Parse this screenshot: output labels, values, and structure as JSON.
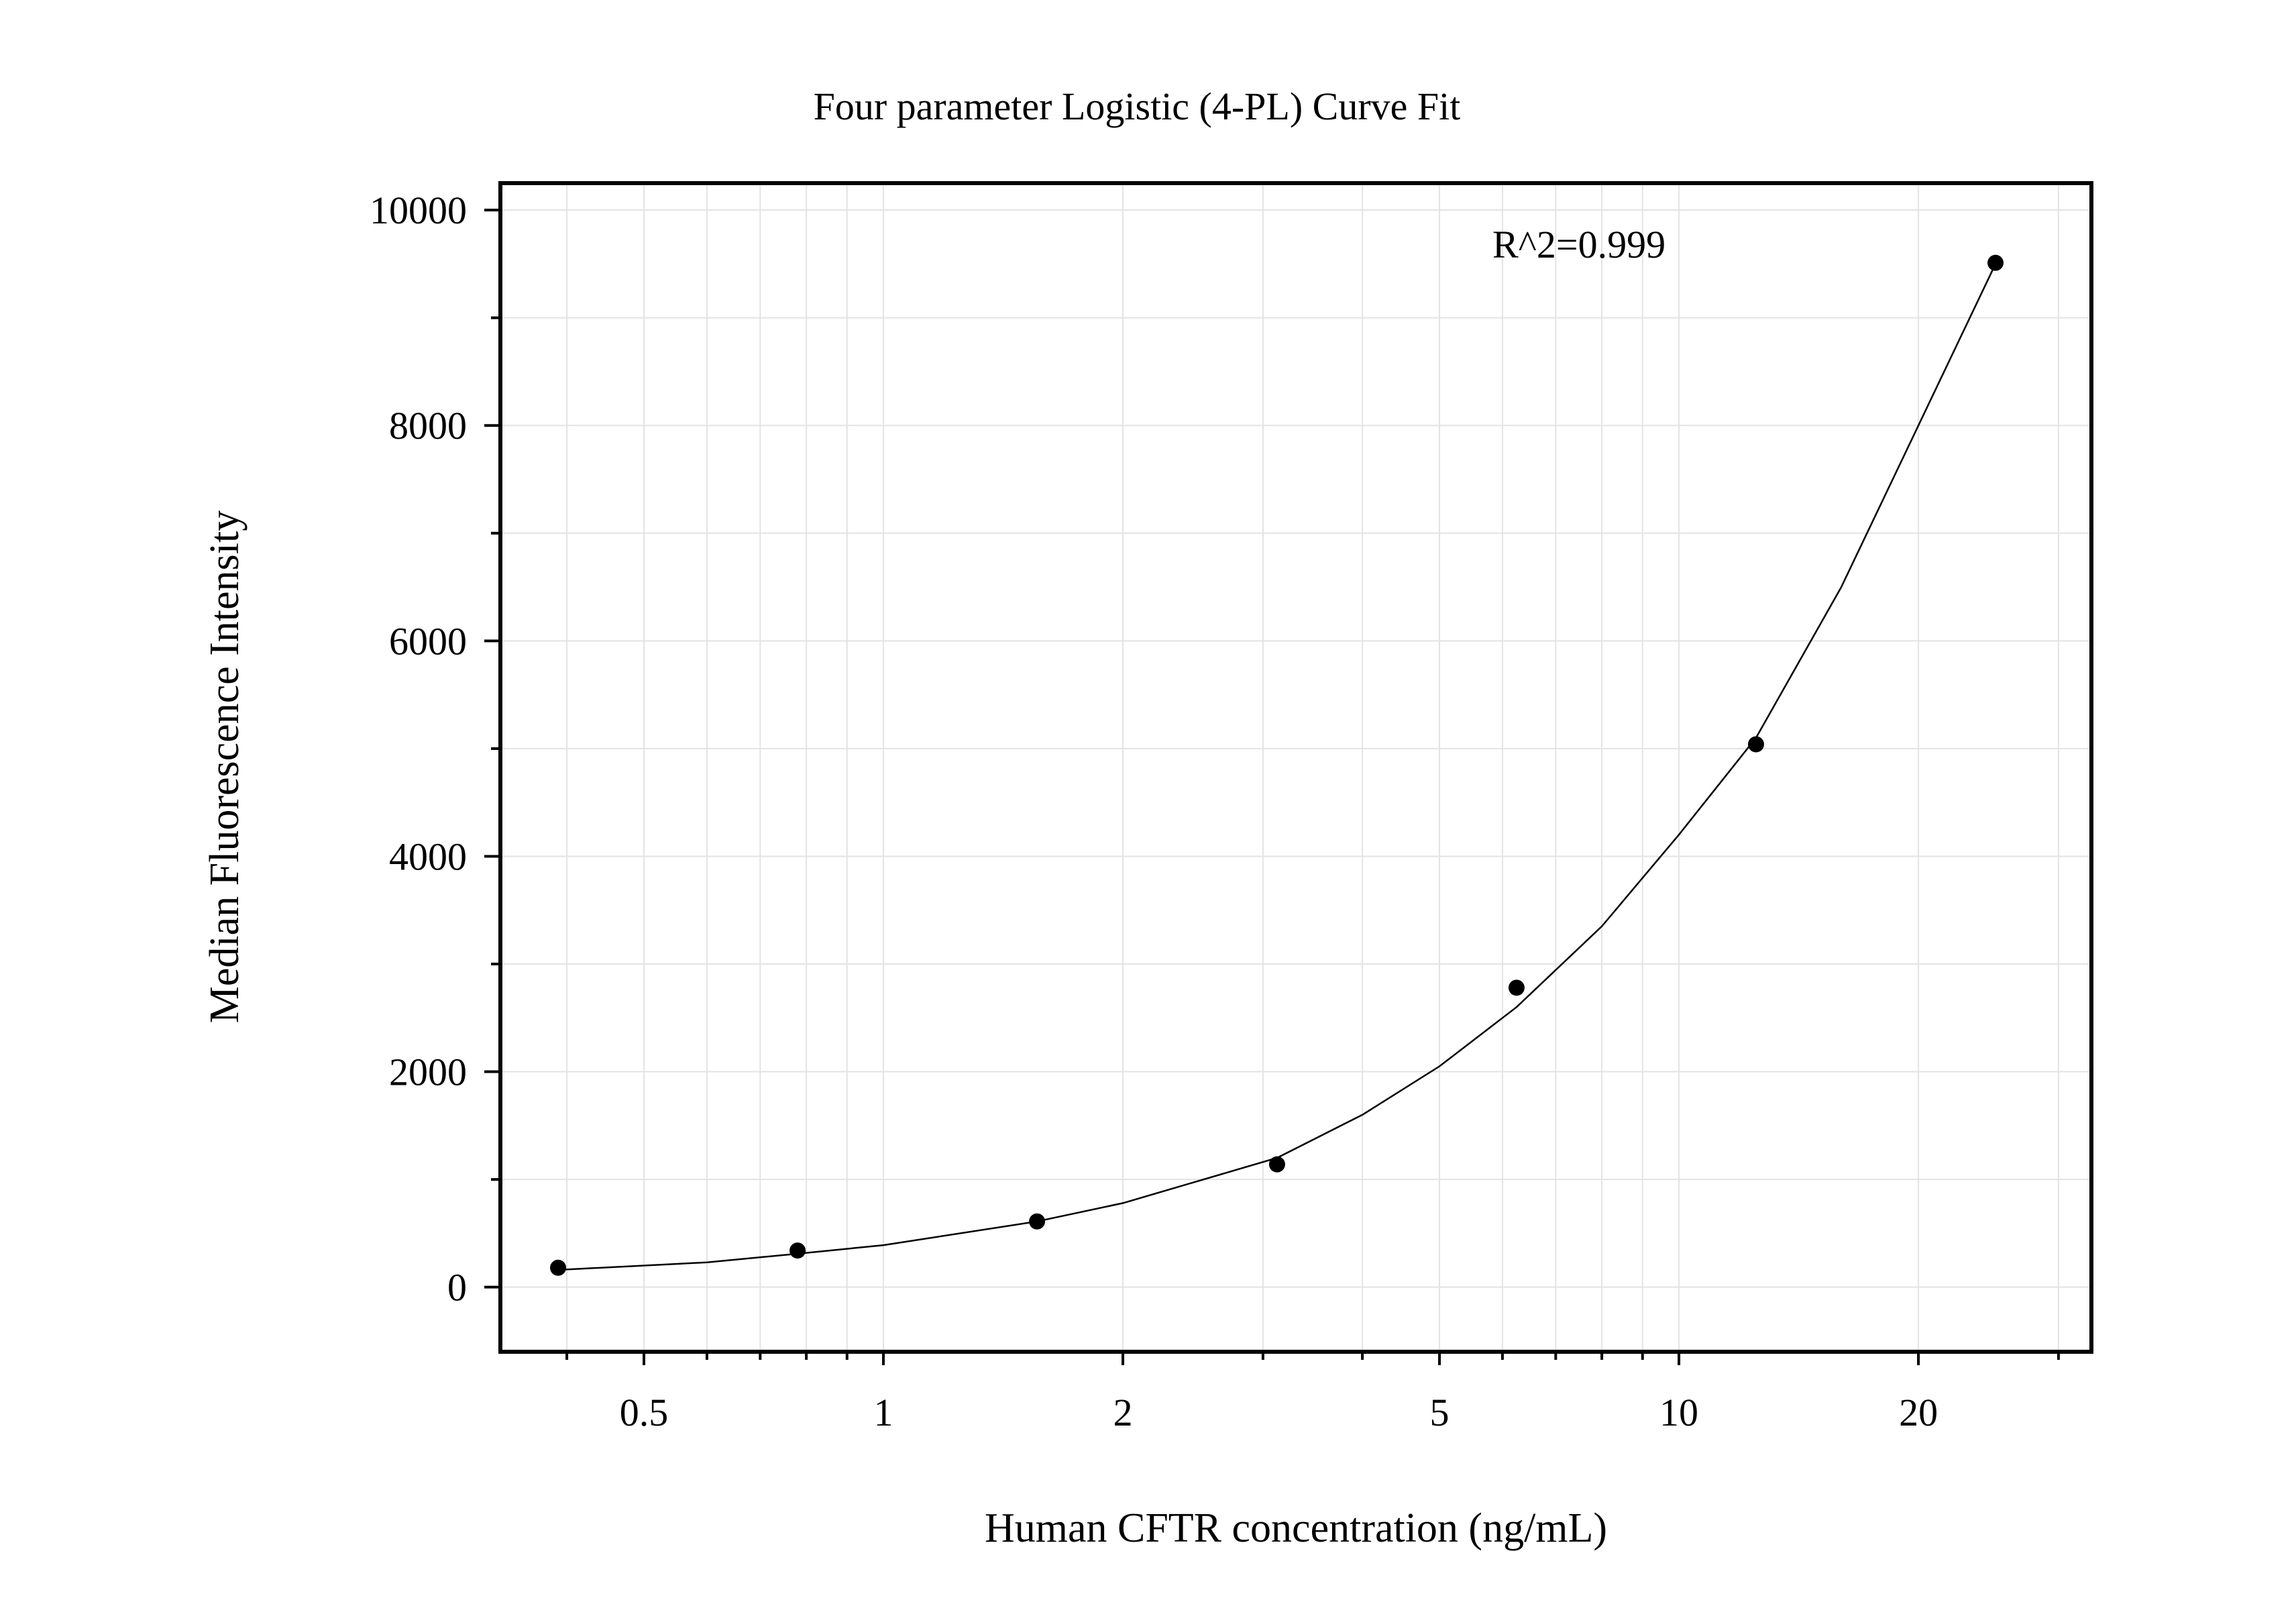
{
  "chart_data": {
    "type": "scatter",
    "title": "Four parameter Logistic (4-PL) Curve Fit",
    "xlabel": "Human CFTR concentration (ng/mL)",
    "ylabel": "Median Fluorescence Intensity",
    "x_scale": "log",
    "xlim": [
      0.33,
      33
    ],
    "ylim": [
      -600,
      10250
    ],
    "x_ticks": [
      0.5,
      1,
      2,
      5,
      10,
      20
    ],
    "x_tick_labels": [
      "0.5",
      "1",
      "2",
      "5",
      "10",
      "20"
    ],
    "y_ticks": [
      0,
      2000,
      4000,
      6000,
      8000,
      10000
    ],
    "y_tick_labels": [
      "0",
      "2000",
      "4000",
      "6000",
      "8000",
      "10000"
    ],
    "grid": true,
    "annotation": "R^2=0.999",
    "series": [
      {
        "points": [
          {
            "x": 0.39,
            "y": 180
          },
          {
            "x": 0.78,
            "y": 340
          },
          {
            "x": 1.56,
            "y": 610
          },
          {
            "x": 3.125,
            "y": 1140
          },
          {
            "x": 6.25,
            "y": 2780
          },
          {
            "x": 12.5,
            "y": 5040
          },
          {
            "x": 25,
            "y": 9510
          }
        ],
        "color": "#000000"
      },
      {
        "type": "line",
        "fit": "4-PL",
        "points": [
          {
            "x": 0.39,
            "y": 160
          },
          {
            "x": 0.6,
            "y": 230
          },
          {
            "x": 0.78,
            "y": 310
          },
          {
            "x": 1.0,
            "y": 390
          },
          {
            "x": 1.56,
            "y": 610
          },
          {
            "x": 2.0,
            "y": 780
          },
          {
            "x": 3.125,
            "y": 1200
          },
          {
            "x": 4.0,
            "y": 1600
          },
          {
            "x": 5.0,
            "y": 2050
          },
          {
            "x": 6.25,
            "y": 2600
          },
          {
            "x": 8.0,
            "y": 3350
          },
          {
            "x": 10.0,
            "y": 4200
          },
          {
            "x": 12.5,
            "y": 5100
          },
          {
            "x": 16.0,
            "y": 6500
          },
          {
            "x": 20.0,
            "y": 8000
          },
          {
            "x": 25.0,
            "y": 9500
          }
        ],
        "color": "#000000"
      }
    ]
  }
}
